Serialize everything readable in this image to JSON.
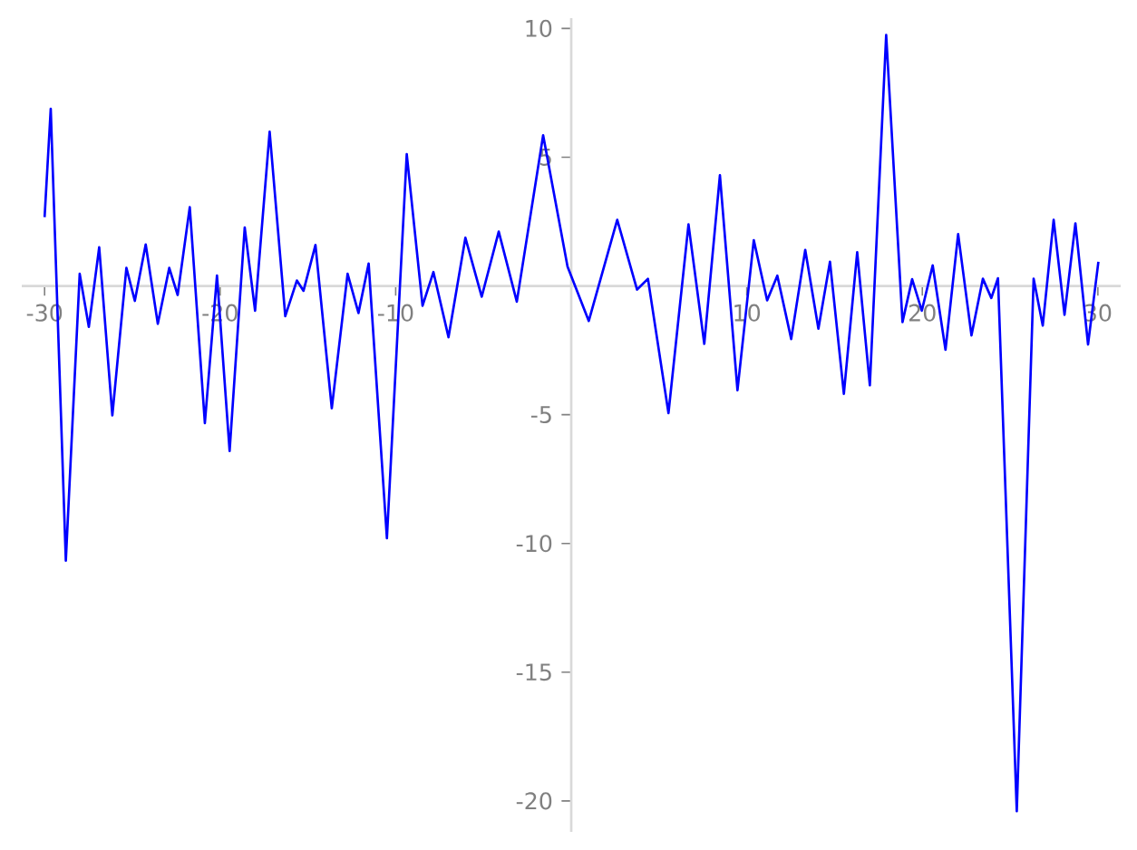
{
  "chart_data": {
    "type": "line",
    "xlim": [
      -31.3,
      31.3
    ],
    "ylim": [
      -21.2,
      10.4
    ],
    "xticks": [
      -30,
      -20,
      -10,
      10,
      20,
      30
    ],
    "yticks": [
      -20,
      -15,
      -10,
      -5,
      5,
      10
    ],
    "series": [
      {
        "color": "#0000ff",
        "x": [
          -30.0,
          -29.65,
          -28.79,
          -28.0,
          -27.48,
          -26.89,
          -26.14,
          -25.34,
          -24.86,
          -24.24,
          -23.55,
          -22.9,
          -22.42,
          -21.73,
          -20.87,
          -20.18,
          -19.46,
          -18.6,
          -18.01,
          -17.18,
          -16.29,
          -15.63,
          -15.25,
          -14.57,
          -13.64,
          -12.74,
          -12.12,
          -11.54,
          -10.5,
          -9.37,
          -8.47,
          -7.85,
          -6.99,
          -6.03,
          -5.1,
          -4.13,
          -3.1,
          -1.6,
          -0.21,
          1.0,
          2.62,
          3.75,
          4.37,
          5.54,
          6.68,
          7.58,
          8.47,
          9.47,
          10.4,
          11.16,
          11.74,
          12.53,
          13.33,
          14.08,
          14.74,
          15.53,
          16.29,
          17.01,
          17.94,
          18.87,
          19.42,
          19.97,
          20.59,
          21.32,
          22.04,
          22.8,
          23.45,
          23.93,
          24.31,
          25.38,
          26.34,
          26.86,
          27.48,
          28.1,
          28.72,
          29.44,
          30.03
        ],
        "values": [
          2.67,
          6.88,
          -10.67,
          0.47,
          -1.59,
          1.5,
          -5.03,
          0.7,
          -0.58,
          1.61,
          -1.47,
          0.7,
          -0.35,
          3.06,
          -5.33,
          0.4,
          -6.41,
          2.27,
          -0.96,
          5.99,
          -1.17,
          0.21,
          -0.19,
          1.59,
          -4.75,
          0.47,
          -1.05,
          0.87,
          -9.8,
          5.12,
          -0.77,
          0.54,
          -1.99,
          1.87,
          -0.42,
          2.11,
          -0.61,
          5.85,
          0.75,
          -1.36,
          2.57,
          -0.14,
          0.28,
          -4.94,
          2.39,
          -2.25,
          4.3,
          -4.05,
          1.78,
          -0.56,
          0.4,
          -2.06,
          1.4,
          -1.66,
          0.94,
          -4.19,
          1.31,
          -3.86,
          9.75,
          -1.4,
          0.26,
          -0.96,
          0.8,
          -2.48,
          2.01,
          -1.92,
          0.28,
          -0.47,
          0.3,
          -20.4,
          0.28,
          -1.54,
          2.57,
          -1.12,
          2.43,
          -2.27,
          0.94
        ]
      }
    ]
  }
}
